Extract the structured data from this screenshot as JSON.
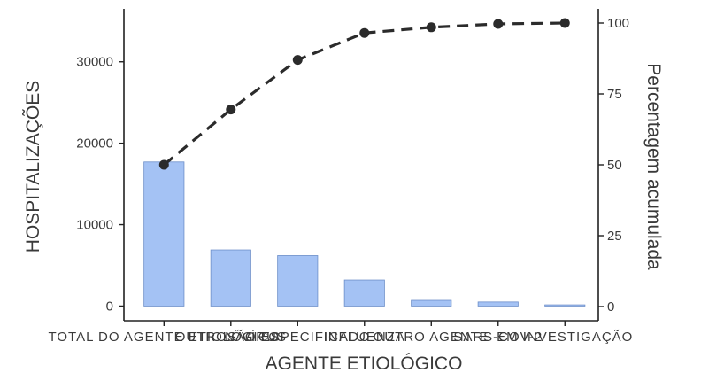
{
  "chart_data": {
    "type": "bar",
    "xlabel": "AGENTE ETIOLÓGICO",
    "ylabel": "HOSPITALIZAÇÕES",
    "y2label": "Percentagem acumulada",
    "categories": [
      "TOTAL DO AGENTE ETIOLÓGICO",
      "OUTROS VÍRUS",
      "NÃO ESPECIFICADO",
      "INFLUENZA",
      "OUTRO AGENTE",
      "SARS-COV-2",
      "EM INVESTIGAÇÃO"
    ],
    "series": [
      {
        "type": "bar",
        "values": [
          17700,
          6900,
          6200,
          3200,
          700,
          500,
          150
        ]
      },
      {
        "type": "line",
        "axis": "right",
        "values": [
          50,
          69.5,
          87,
          96.5,
          98.5,
          99.7,
          100
        ]
      }
    ],
    "ylim": [
      -1800,
      36500
    ],
    "y2lim": [
      -5,
      105
    ],
    "yticks": [
      0,
      10000,
      20000,
      30000
    ],
    "y2ticks": [
      0,
      25,
      50,
      75,
      100
    ],
    "grid": false,
    "legend": "none",
    "colors": {
      "bar_fill": "#a4c2f4",
      "bar_stroke": "#6d8fc9",
      "line": "#2b2b2b"
    }
  }
}
